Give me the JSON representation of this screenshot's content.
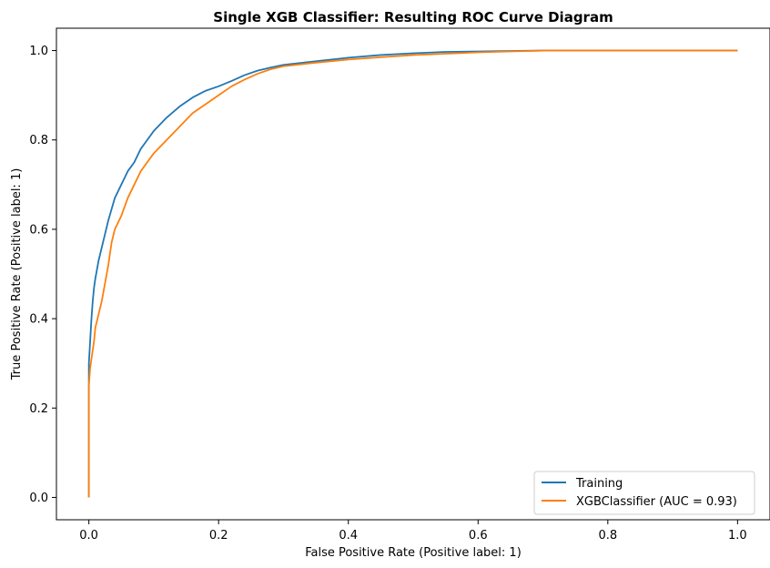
{
  "chart_data": {
    "type": "line",
    "title": "Single XGB Classifier: Resulting ROC Curve Diagram",
    "xlabel": "False Positive Rate (Positive label: 1)",
    "ylabel": "True Positive Rate (Positive label: 1)",
    "xlim": [
      -0.05,
      1.05
    ],
    "ylim": [
      -0.05,
      1.05
    ],
    "xticks": [
      0.0,
      0.2,
      0.4,
      0.6,
      0.8,
      1.0
    ],
    "xtick_labels": [
      "0.0",
      "0.2",
      "0.4",
      "0.6",
      "0.8",
      "1.0"
    ],
    "yticks": [
      0.0,
      0.2,
      0.4,
      0.6,
      0.8,
      1.0
    ],
    "ytick_labels": [
      "0.0",
      "0.2",
      "0.4",
      "0.6",
      "0.8",
      "1.0"
    ],
    "grid": false,
    "legend_position": "bottom-right",
    "series": [
      {
        "name": "Training",
        "color": "#1f77b4",
        "x": [
          0.0,
          0.0,
          0.002,
          0.004,
          0.006,
          0.008,
          0.01,
          0.015,
          0.02,
          0.025,
          0.03,
          0.04,
          0.05,
          0.06,
          0.07,
          0.08,
          0.09,
          0.1,
          0.12,
          0.14,
          0.16,
          0.18,
          0.2,
          0.22,
          0.24,
          0.26,
          0.28,
          0.3,
          0.35,
          0.4,
          0.45,
          0.5,
          0.55,
          0.6,
          0.65,
          0.7,
          0.8,
          0.9,
          1.0
        ],
        "y": [
          0.0,
          0.3,
          0.35,
          0.4,
          0.44,
          0.47,
          0.49,
          0.53,
          0.56,
          0.59,
          0.62,
          0.67,
          0.7,
          0.73,
          0.75,
          0.78,
          0.8,
          0.82,
          0.85,
          0.875,
          0.895,
          0.91,
          0.92,
          0.932,
          0.945,
          0.955,
          0.962,
          0.968,
          0.976,
          0.984,
          0.99,
          0.994,
          0.997,
          0.998,
          0.999,
          1.0,
          1.0,
          1.0,
          1.0
        ]
      },
      {
        "name": "XGBClassifier (AUC = 0.93)",
        "color": "#ff7f0e",
        "x": [
          0.0,
          0.0,
          0.002,
          0.004,
          0.006,
          0.008,
          0.01,
          0.015,
          0.02,
          0.025,
          0.03,
          0.035,
          0.04,
          0.05,
          0.06,
          0.07,
          0.08,
          0.09,
          0.1,
          0.12,
          0.14,
          0.16,
          0.18,
          0.2,
          0.22,
          0.24,
          0.26,
          0.28,
          0.3,
          0.35,
          0.4,
          0.45,
          0.5,
          0.55,
          0.6,
          0.65,
          0.7,
          0.8,
          0.9,
          1.0
        ],
        "y": [
          0.0,
          0.25,
          0.29,
          0.31,
          0.33,
          0.35,
          0.38,
          0.41,
          0.44,
          0.48,
          0.52,
          0.57,
          0.6,
          0.63,
          0.67,
          0.7,
          0.73,
          0.75,
          0.77,
          0.8,
          0.83,
          0.86,
          0.88,
          0.9,
          0.92,
          0.935,
          0.948,
          0.958,
          0.965,
          0.973,
          0.98,
          0.985,
          0.99,
          0.993,
          0.996,
          0.998,
          1.0,
          1.0,
          1.0,
          1.0
        ]
      }
    ]
  }
}
